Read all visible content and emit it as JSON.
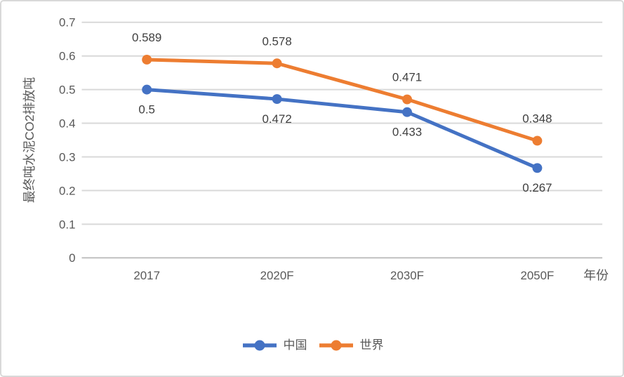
{
  "chart_data": {
    "type": "line",
    "title": "",
    "categories": [
      "2017",
      "2020F",
      "2030F",
      "2050F"
    ],
    "series": [
      {
        "name": "中国",
        "color": "#4472c4",
        "values": [
          0.5,
          0.472,
          0.433,
          0.267
        ],
        "data_labels": [
          "0.5",
          "0.472",
          "0.433",
          "0.267"
        ],
        "data_label_position": "below",
        "marker": "circle"
      },
      {
        "name": "世界",
        "color": "#ed7d31",
        "values": [
          0.589,
          0.578,
          0.471,
          0.348
        ],
        "data_labels": [
          "0.589",
          "0.578",
          "0.471",
          "0.348"
        ],
        "data_label_position": "above",
        "marker": "circle"
      }
    ],
    "xlabel": "年份",
    "ylabel": "最终吨水泥CO2排放吨",
    "ylim": [
      0,
      0.7
    ],
    "yticks": [
      0,
      0.1,
      0.2,
      0.3,
      0.4,
      0.5,
      0.6,
      0.7
    ],
    "grid": true,
    "legend_position": "bottom-center",
    "colors": {
      "grid": "#d9d9d9",
      "axis_line": "#c0c0c0",
      "tick_label": "#595959",
      "axis_title": "#595959",
      "data_label": "#404040",
      "frame_border": "#d9d9d9",
      "background": "#ffffff"
    }
  }
}
